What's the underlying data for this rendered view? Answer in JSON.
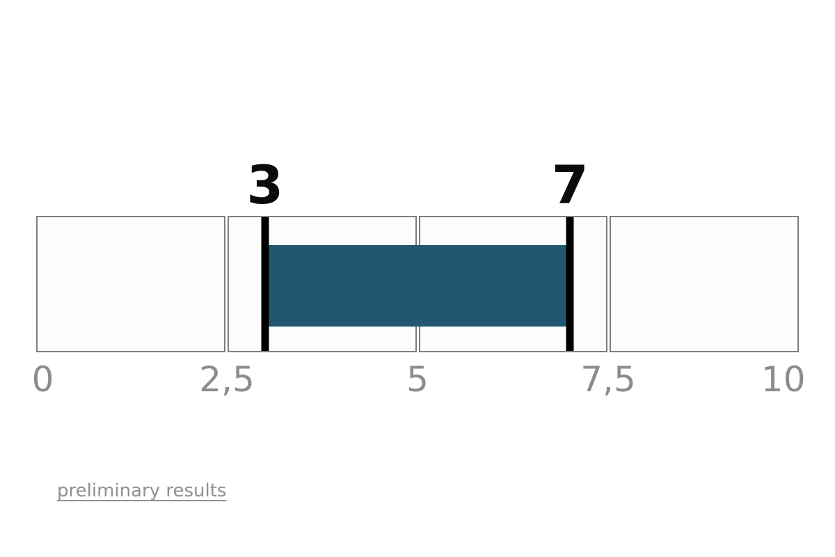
{
  "chart_data": {
    "type": "bar",
    "subtype": "range-gauge",
    "title": "",
    "axis": {
      "min": 0,
      "max": 10,
      "tick_values": [
        0,
        2.5,
        5,
        7.5,
        10
      ],
      "tick_labels": [
        "0",
        "2,5",
        "5",
        "7,5",
        "10"
      ]
    },
    "range": {
      "start": 3,
      "end": 7,
      "start_label": "3",
      "end_label": "7"
    },
    "segments": 4,
    "legend": "none",
    "grid": "4 equal bordered segments, markers drawn as thick black vertical lines at range ends, filled bar between markers",
    "colors": {
      "bar": "#215770",
      "marker": "#000000",
      "cell_background": "#fbfdfc",
      "cell_border": "#7c7f7f",
      "tick_label": "#8c8c8c",
      "value_label": "#0b0b0b"
    }
  },
  "footer": {
    "link_label": "preliminary results",
    "link_color": "#8d9193"
  }
}
